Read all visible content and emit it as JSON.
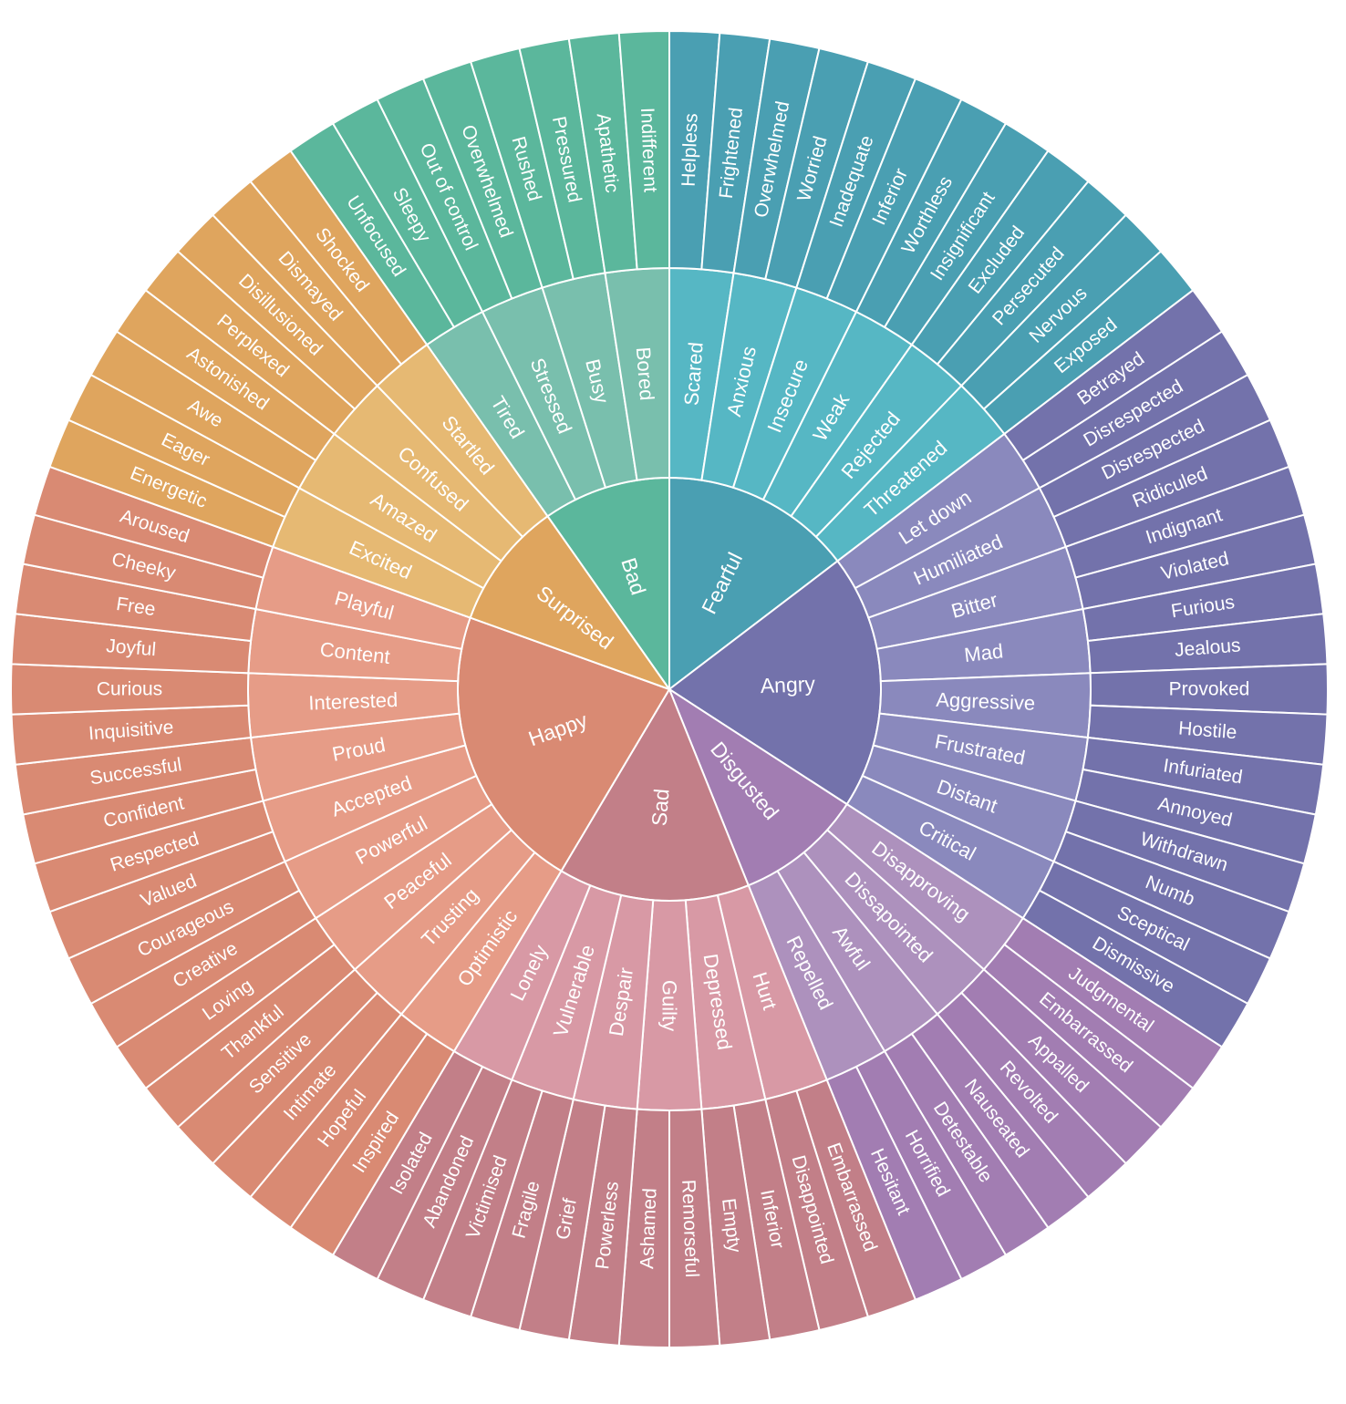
{
  "wheel": {
    "start_heading_deg": 0,
    "core": [
      {
        "label": "Fearful",
        "colors": [
          "#4a9fb2",
          "#56b7c4",
          "#4a9fb2"
        ],
        "children": [
          {
            "label": "Scared",
            "children": [
              "Helpless",
              "Frightened"
            ]
          },
          {
            "label": "Anxious",
            "children": [
              "Overwhelmed",
              "Worried"
            ]
          },
          {
            "label": "Insecure",
            "children": [
              "Inadequate",
              "Inferior"
            ]
          },
          {
            "label": "Weak",
            "children": [
              "Worthless",
              "Insignificant"
            ]
          },
          {
            "label": "Rejected",
            "children": [
              "Excluded",
              "Persecuted"
            ]
          },
          {
            "label": "Threatened",
            "children": [
              "Nervous",
              "Exposed"
            ]
          }
        ]
      },
      {
        "label": "Angry",
        "colors": [
          "#7372ab",
          "#8a89bd",
          "#7372ab"
        ],
        "children": [
          {
            "label": "Let down",
            "children": [
              "Betrayed",
              "Disrespected"
            ]
          },
          {
            "label": "Humiliated",
            "children": [
              "Disrespected",
              "Ridiculed"
            ]
          },
          {
            "label": "Bitter",
            "children": [
              "Indignant",
              "Violated"
            ]
          },
          {
            "label": "Mad",
            "children": [
              "Furious",
              "Jealous"
            ]
          },
          {
            "label": "Aggressive",
            "children": [
              "Provoked",
              "Hostile"
            ]
          },
          {
            "label": "Frustrated",
            "children": [
              "Infuriated",
              "Annoyed"
            ]
          },
          {
            "label": "Distant",
            "children": [
              "Withdrawn",
              "Numb"
            ]
          },
          {
            "label": "Critical",
            "children": [
              "Sceptical",
              "Dismissive"
            ]
          }
        ]
      },
      {
        "label": "Disgusted",
        "colors": [
          "#a27db2",
          "#ad91bd",
          "#a27db2"
        ],
        "children": [
          {
            "label": "Disapproving",
            "children": [
              "Judgmental",
              "Embarrassed"
            ]
          },
          {
            "label": "Dissapointed",
            "children": [
              "Appalled",
              "Revolted"
            ]
          },
          {
            "label": "Awful",
            "children": [
              "Nauseated",
              "Detestable"
            ]
          },
          {
            "label": "Repelled",
            "children": [
              "Horrified",
              "Hesitant"
            ]
          }
        ]
      },
      {
        "label": "Sad",
        "colors": [
          "#c27f88",
          "#d899a5",
          "#c27f88"
        ],
        "children": [
          {
            "label": "Hurt",
            "children": [
              "Embarrassed",
              "Disappointed"
            ]
          },
          {
            "label": "Depressed",
            "children": [
              "Inferior",
              "Empty"
            ]
          },
          {
            "label": "Guilty",
            "children": [
              "Remorseful",
              "Ashamed"
            ]
          },
          {
            "label": "Despair",
            "children": [
              "Powerless",
              "Grief"
            ]
          },
          {
            "label": "Vulnerable",
            "children": [
              "Fragile",
              "Victimised"
            ]
          },
          {
            "label": "Lonely",
            "children": [
              "Abandoned",
              "Isolated"
            ]
          }
        ]
      },
      {
        "label": "Happy",
        "colors": [
          "#d98a73",
          "#e69c87",
          "#d98a73"
        ],
        "children": [
          {
            "label": "Optimistic",
            "children": [
              "Inspired",
              "Hopeful"
            ]
          },
          {
            "label": "Trusting",
            "children": [
              "Intimate",
              "Sensitive"
            ]
          },
          {
            "label": "Peaceful",
            "children": [
              "Thankful",
              "Loving"
            ]
          },
          {
            "label": "Powerful",
            "children": [
              "Creative",
              "Courageous"
            ]
          },
          {
            "label": "Accepted",
            "children": [
              "Valued",
              "Respected"
            ]
          },
          {
            "label": "Proud",
            "children": [
              "Confident",
              "Successful"
            ]
          },
          {
            "label": "Interested",
            "children": [
              "Inquisitive",
              "Curious"
            ]
          },
          {
            "label": "Content",
            "children": [
              "Joyful",
              "Free"
            ]
          },
          {
            "label": "Playful",
            "children": [
              "Cheeky",
              "Aroused"
            ]
          }
        ]
      },
      {
        "label": "Surprised",
        "colors": [
          "#dfa55e",
          "#e6b973",
          "#dfa55e"
        ],
        "children": [
          {
            "label": "Excited",
            "children": [
              "Energetic",
              "Eager"
            ]
          },
          {
            "label": "Amazed",
            "children": [
              "Awe",
              "Astonished"
            ]
          },
          {
            "label": "Confused",
            "children": [
              "Perplexed",
              "Disillusioned"
            ]
          },
          {
            "label": "Startled",
            "children": [
              "Dismayed",
              "Shocked"
            ]
          }
        ]
      },
      {
        "label": "Bad",
        "colors": [
          "#5bb79c",
          "#79bfad",
          "#5bb79c"
        ],
        "children": [
          {
            "label": "Tired",
            "children": [
              "Unfocused",
              "Sleepy"
            ]
          },
          {
            "label": "Stressed",
            "children": [
              "Out of control",
              "Overwhelmed"
            ]
          },
          {
            "label": "Busy",
            "children": [
              "Rushed",
              "Pressured"
            ]
          },
          {
            "label": "Bored",
            "children": [
              "Apathetic",
              "Indifferent"
            ]
          }
        ]
      }
    ]
  }
}
